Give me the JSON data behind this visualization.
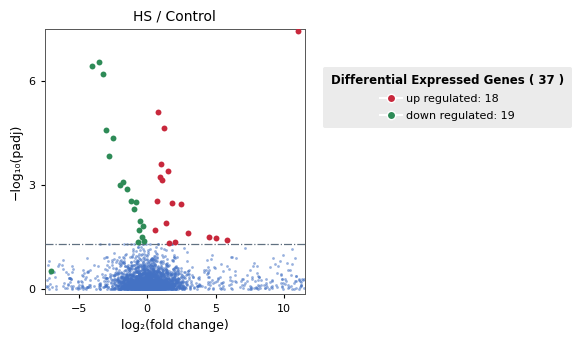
{
  "title": "HS / Control",
  "xlabel": "log₂(fold change)",
  "ylabel": "−log₁₀(padj)",
  "threshold_line": 1.3,
  "xlim": [
    -7.5,
    11.5
  ],
  "ylim": [
    -0.15,
    7.5
  ],
  "legend_title": "Differential Expressed Genes ( 37 )",
  "up_label": "up regulated: 18",
  "down_label": "down regulated: 19",
  "up_color": "#C8283C",
  "down_color": "#2E8B57",
  "base_color": "#4472C4",
  "seed": 42,
  "n_base": 2500,
  "xticks": [
    -5,
    0,
    5,
    10
  ],
  "yticks": [
    0,
    3,
    6
  ],
  "up_regulated": [
    [
      0.8,
      5.1
    ],
    [
      1.2,
      4.65
    ],
    [
      1.0,
      3.6
    ],
    [
      1.5,
      3.4
    ],
    [
      0.9,
      3.25
    ],
    [
      1.1,
      3.15
    ],
    [
      0.7,
      2.55
    ],
    [
      1.8,
      2.5
    ],
    [
      2.5,
      2.45
    ],
    [
      1.4,
      1.9
    ],
    [
      0.6,
      1.72
    ],
    [
      3.0,
      1.62
    ],
    [
      4.5,
      1.52
    ],
    [
      5.0,
      1.47
    ],
    [
      5.8,
      1.43
    ],
    [
      2.0,
      1.37
    ],
    [
      1.6,
      1.32
    ],
    [
      11.0,
      7.45
    ]
  ],
  "down_regulated": [
    [
      -3.5,
      6.55
    ],
    [
      -4.0,
      6.45
    ],
    [
      -3.2,
      6.2
    ],
    [
      -3.0,
      4.6
    ],
    [
      -2.5,
      4.35
    ],
    [
      -2.8,
      3.85
    ],
    [
      -1.8,
      3.1
    ],
    [
      -2.0,
      3.02
    ],
    [
      -1.5,
      2.9
    ],
    [
      -1.2,
      2.55
    ],
    [
      -0.8,
      2.52
    ],
    [
      -1.0,
      2.32
    ],
    [
      -0.5,
      1.98
    ],
    [
      -0.3,
      1.82
    ],
    [
      -0.6,
      1.72
    ],
    [
      -0.4,
      1.52
    ],
    [
      -0.2,
      1.4
    ],
    [
      -0.7,
      1.35
    ],
    [
      -7.0,
      0.52
    ]
  ]
}
